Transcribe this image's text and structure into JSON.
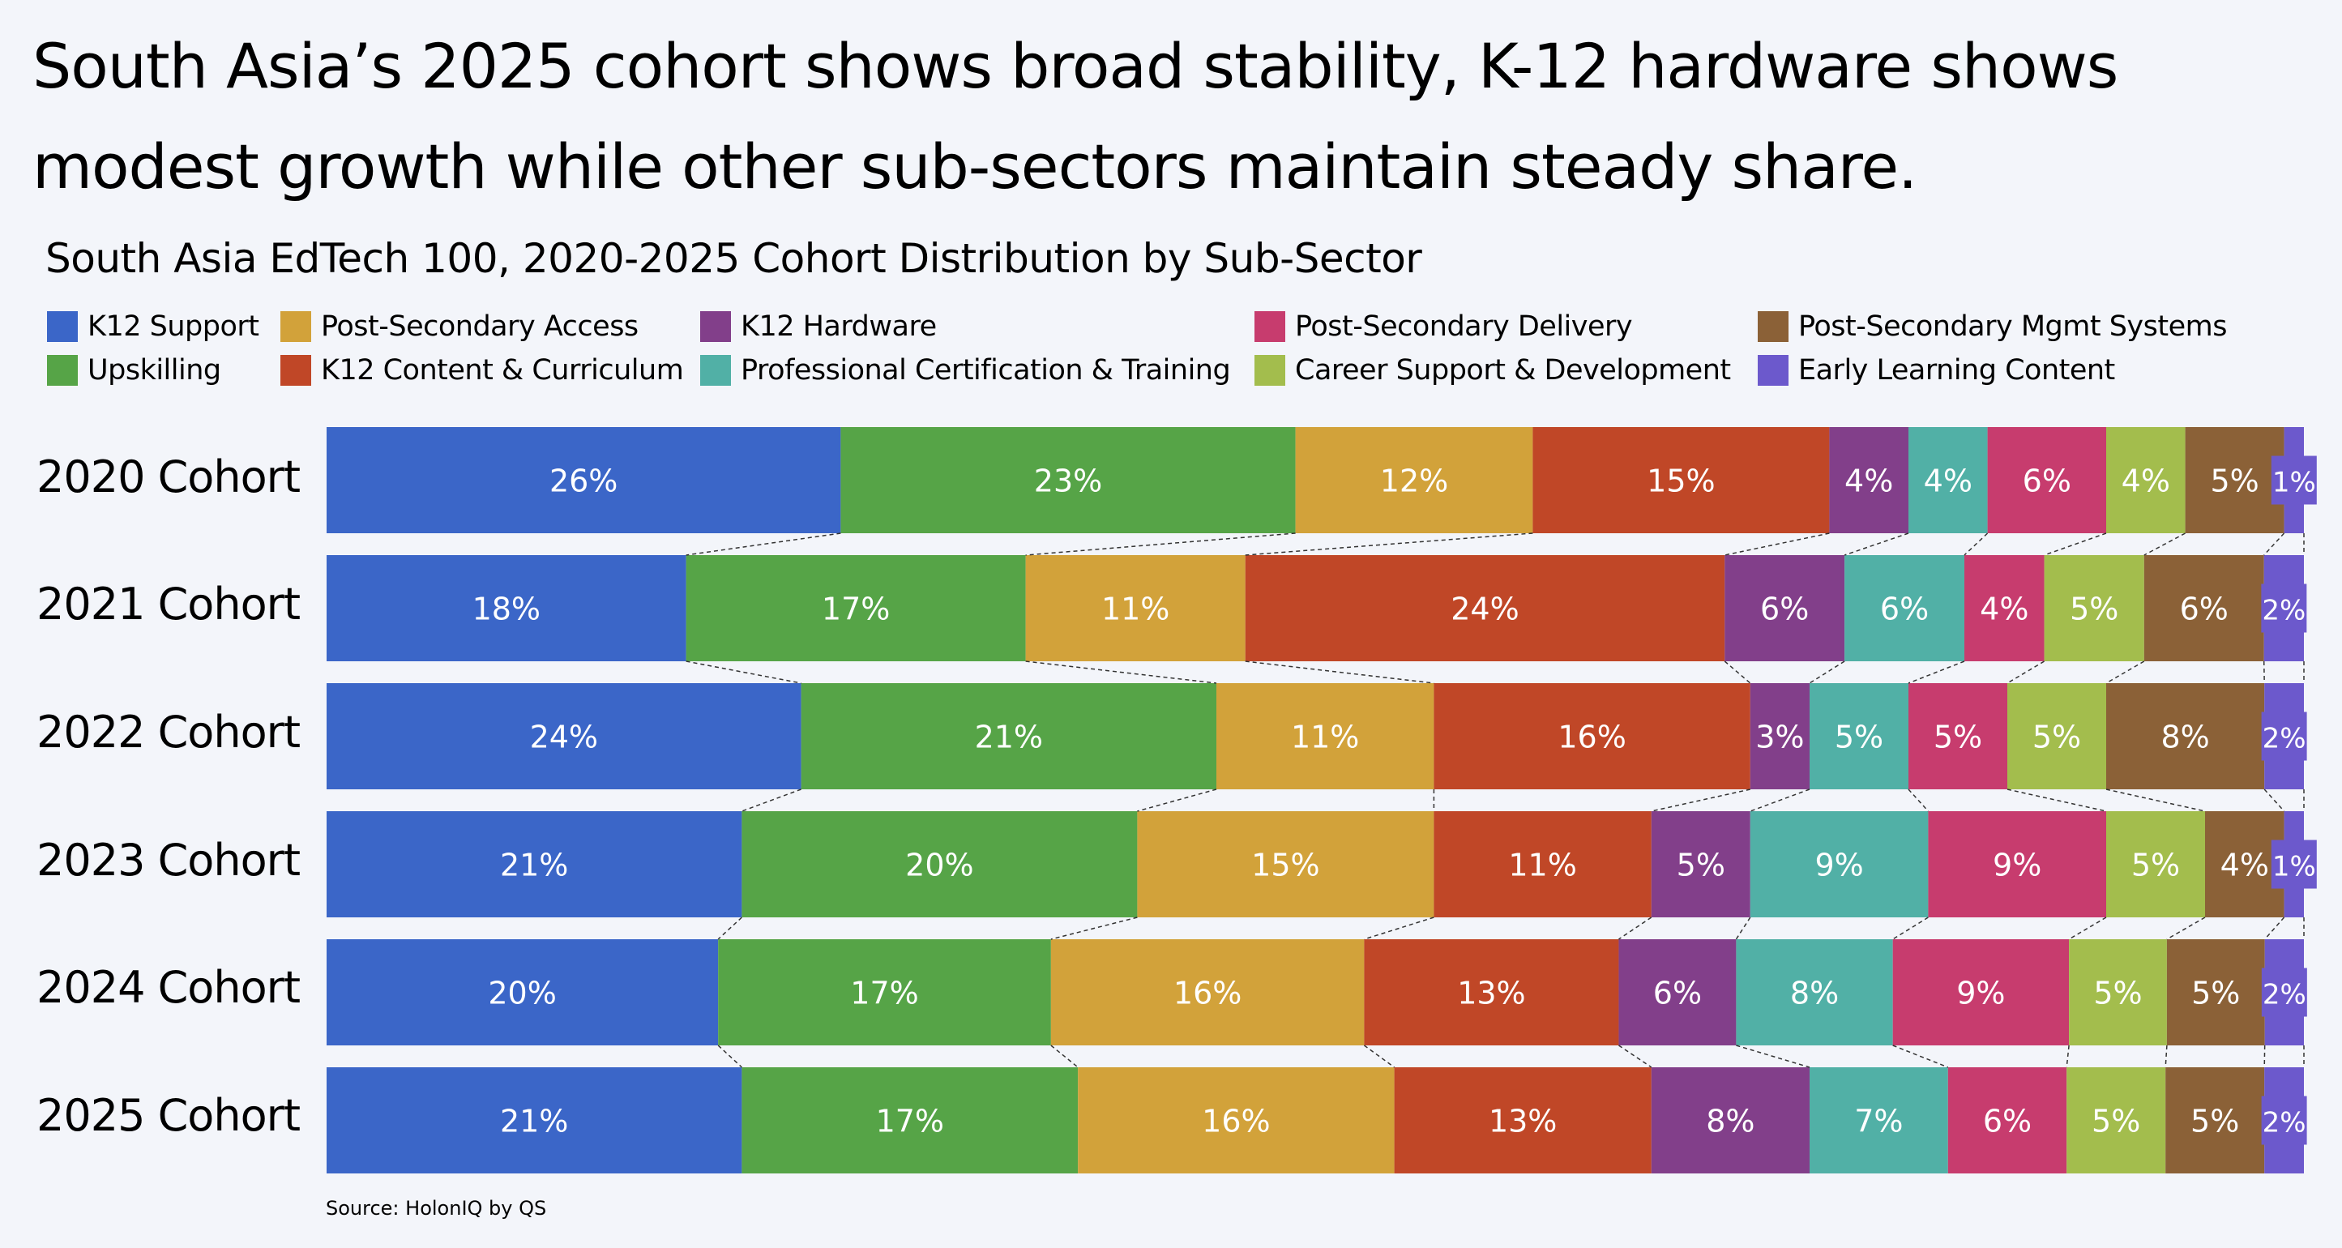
{
  "headline": "South Asia’s 2025 cohort shows broad stability, K-12 hardware shows modest growth while other sub-sectors maintain steady share.",
  "source": "Source: HolonIQ by QS",
  "chart_data": {
    "type": "bar",
    "orientation": "horizontal",
    "stacked": "100%",
    "title": "South Asia EdTech 100, 2020-2025 Cohort Distribution by Sub-Sector",
    "xlabel": "",
    "ylabel": "",
    "categories": [
      "2020 Cohort",
      "2021 Cohort",
      "2022 Cohort",
      "2023 Cohort",
      "2024 Cohort",
      "2025 Cohort"
    ],
    "legend_position": "top-left",
    "grid": false,
    "connector_lines": "dashed",
    "legend": [
      {
        "name": "K12 Support",
        "color": "#3b66c8"
      },
      {
        "name": "Post-Secondary Access",
        "color": "#d2a23a"
      },
      {
        "name": "K12 Hardware",
        "color": "#823f8a"
      },
      {
        "name": "Post-Secondary Delivery",
        "color": "#c73c6e"
      },
      {
        "name": "Post-Secondary Mgmt Systems",
        "color": "#8b6137"
      },
      {
        "name": "Upskilling",
        "color": "#56a447"
      },
      {
        "name": "K12 Content & Curriculum",
        "color": "#c04727"
      },
      {
        "name": "Professional Certification & Training",
        "color": "#51b0a6"
      },
      {
        "name": "Career Support & Development",
        "color": "#a3bd4d"
      },
      {
        "name": "Early Learning Content",
        "color": "#6c59cc"
      }
    ],
    "series": [
      {
        "name": "K12 Support",
        "color": "#3b66c8",
        "values": [
          26,
          18,
          24,
          21,
          20,
          21
        ]
      },
      {
        "name": "Upskilling",
        "color": "#56a447",
        "values": [
          23,
          17,
          21,
          20,
          17,
          17
        ]
      },
      {
        "name": "Post-Secondary Access",
        "color": "#d2a23a",
        "values": [
          12,
          11,
          11,
          15,
          16,
          16
        ]
      },
      {
        "name": "K12 Content & Curriculum",
        "color": "#c04727",
        "values": [
          15,
          24,
          16,
          11,
          13,
          13
        ]
      },
      {
        "name": "K12 Hardware",
        "color": "#823f8a",
        "values": [
          4,
          6,
          3,
          5,
          6,
          8
        ]
      },
      {
        "name": "Professional Certification & Training",
        "color": "#51b0a6",
        "values": [
          4,
          6,
          5,
          9,
          8,
          7
        ]
      },
      {
        "name": "Post-Secondary Delivery",
        "color": "#c73c6e",
        "values": [
          6,
          4,
          5,
          9,
          9,
          6
        ]
      },
      {
        "name": "Career Support & Development",
        "color": "#a3bd4d",
        "values": [
          4,
          5,
          5,
          5,
          5,
          5
        ]
      },
      {
        "name": "Post-Secondary Mgmt Systems",
        "color": "#8b6137",
        "values": [
          5,
          6,
          8,
          4,
          5,
          5
        ]
      },
      {
        "name": "Early Learning Content",
        "color": "#6c59cc",
        "values": [
          1,
          2,
          2,
          1,
          2,
          2
        ]
      }
    ],
    "value_suffix": "%"
  }
}
